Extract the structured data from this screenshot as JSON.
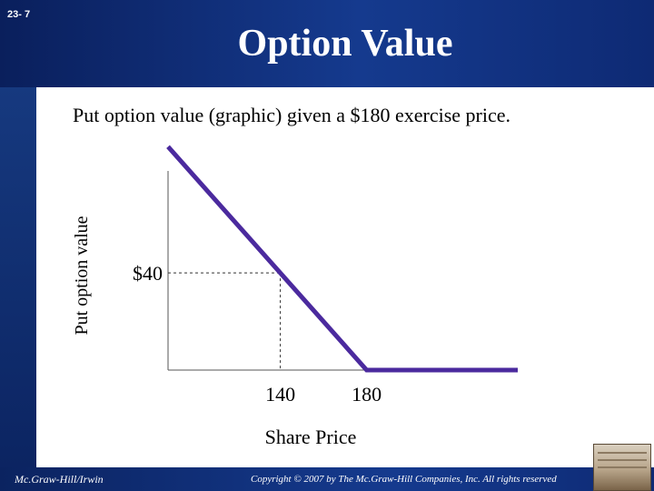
{
  "slide_number": "23- 7",
  "title": "Option Value",
  "subtitle": "Put option value (graphic) given a $180 exercise price.",
  "footer": {
    "publisher": "Mc.Graw-Hill/Irwin",
    "copyright": "Copyright © 2007 by The Mc.Graw-Hill Companies, Inc. All rights reserved"
  },
  "colors": {
    "header_blue": "#153a8e",
    "payoff_line": "#4b2a9e",
    "axis": "#555555"
  },
  "chart_data": {
    "type": "line",
    "title": "",
    "xlabel": "Share Price",
    "ylabel": "Put option value",
    "xlim": [
      88,
      250
    ],
    "ylim": [
      0,
      82
    ],
    "x_ticks": [
      140,
      180
    ],
    "x_tick_labels": [
      "140",
      "180"
    ],
    "y_ticks": [
      40
    ],
    "y_tick_labels": [
      "$40"
    ],
    "series": [
      {
        "x": [
          88,
          180,
          250
        ],
        "y": [
          92,
          0,
          0
        ]
      }
    ],
    "reference_point": {
      "x": 140,
      "y": 40
    },
    "grid": false,
    "legend": "none"
  }
}
